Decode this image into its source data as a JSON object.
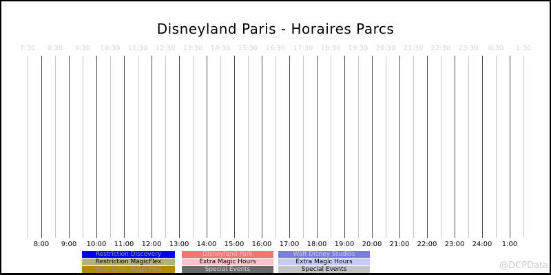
{
  "title": "Disneyland Paris - Horaires Parcs",
  "watermark": "@DCPData",
  "axis": {
    "top_ticks": [
      "7:30",
      "8:30",
      "9:30",
      "10:30",
      "11:30",
      "12:30",
      "13:30",
      "14:30",
      "15:30",
      "16:30",
      "17:30",
      "18:30",
      "19:30",
      "20:30",
      "21:30",
      "22:30",
      "23:30",
      "0:30",
      "1:30"
    ],
    "bottom_ticks": [
      "8:00",
      "9:00",
      "10:00",
      "11:00",
      "12:00",
      "13:00",
      "14:00",
      "15:00",
      "16:00",
      "17:00",
      "18:00",
      "19:00",
      "20:00",
      "21:00",
      "22:00",
      "23:00",
      "24:00",
      "1:00"
    ]
  },
  "legend": {
    "columns": [
      {
        "items": [
          {
            "label": "Restriction Discovery",
            "bg": "#0000ee",
            "fg": "#9a9a9a"
          },
          {
            "label": "Restriction MagicFlex",
            "bg": "#b1b183",
            "fg": "#000000"
          },
          {
            "label": "Restriction MagicPlus",
            "bg": "#b8860b",
            "fg": "#9a9a9a"
          }
        ]
      },
      {
        "items": [
          {
            "label": "Disneyland Park",
            "bg": "#f97575",
            "fg": "#ffc0cb"
          },
          {
            "label": "Extra Magic Hours",
            "bg": "#ffc0cb",
            "fg": "#000000"
          },
          {
            "label": "Special Events",
            "bg": "#696969",
            "fg": "#d3d3d3"
          }
        ]
      },
      {
        "items": [
          {
            "label": "Walt Disney Studios",
            "bg": "#7b7bea",
            "fg": "#ccccdf"
          },
          {
            "label": "Extra Magic Hours",
            "bg": "#c9c9f7",
            "fg": "#000000"
          },
          {
            "label": "Special Events",
            "bg": "#c4c4c4",
            "fg": "#000000"
          }
        ]
      }
    ]
  },
  "colors": {
    "background": "#ffffff",
    "border": "#000000",
    "grid_half_hour": "#c6c6c6",
    "grid_hour": "#4a4a4a",
    "tick_top_text": "#d4d4d4",
    "tick_bottom_text": "#000000",
    "watermark_text": "#cccccc"
  },
  "chart_data": {
    "type": "bar",
    "title": "Disneyland Paris - Horaires Parcs",
    "x_ticks_top": [
      "7:30",
      "8:30",
      "9:30",
      "10:30",
      "11:30",
      "12:30",
      "13:30",
      "14:30",
      "15:30",
      "16:30",
      "17:30",
      "18:30",
      "19:30",
      "20:30",
      "21:30",
      "22:30",
      "23:30",
      "0:30",
      "1:30"
    ],
    "x_ticks_bottom": [
      "8:00",
      "9:00",
      "10:00",
      "11:00",
      "12:00",
      "13:00",
      "14:00",
      "15:00",
      "16:00",
      "17:00",
      "18:00",
      "19:00",
      "20:00",
      "21:00",
      "22:00",
      "23:00",
      "24:00",
      "1:00"
    ],
    "x_range": [
      "7:30",
      "1:30"
    ],
    "grid": "vertical lines every 30 min; light gray at half hours, dark gray at full hours",
    "legend_position": "bottom",
    "legend": [
      {
        "label": "Restriction Discovery",
        "color": "#0000ee"
      },
      {
        "label": "Restriction MagicFlex",
        "color": "#b1b183"
      },
      {
        "label": "Restriction MagicPlus",
        "color": "#b8860b"
      },
      {
        "label": "Disneyland Park",
        "color": "#f97575"
      },
      {
        "label": "Extra Magic Hours",
        "color": "#ffc0cb"
      },
      {
        "label": "Special Events",
        "color": "#696969"
      },
      {
        "label": "Walt Disney Studios",
        "color": "#7b7bea"
      },
      {
        "label": "Extra Magic Hours",
        "color": "#c9c9f7"
      },
      {
        "label": "Special Events",
        "color": "#c4c4c4"
      }
    ],
    "series": []
  }
}
